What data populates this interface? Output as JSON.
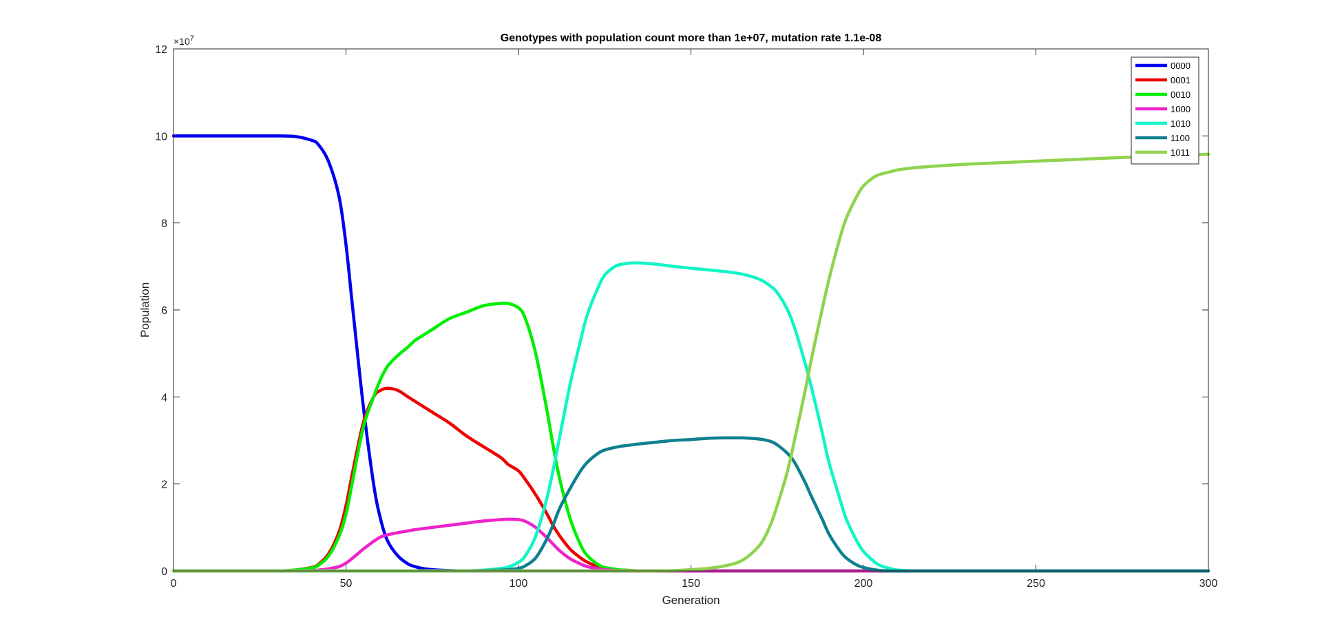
{
  "chart_data": {
    "type": "line",
    "title": "Genotypes with population count more than 1e+07, mutation rate 1.1e-08",
    "xlabel": "Generation",
    "ylabel": "Population",
    "y_exponent_label": "×10",
    "y_exponent_power": "7",
    "xlim": [
      0,
      300
    ],
    "ylim": [
      0,
      12
    ],
    "x_ticks": [
      0,
      50,
      100,
      150,
      200,
      250,
      300
    ],
    "y_ticks": [
      0,
      2,
      4,
      6,
      8,
      10,
      12
    ],
    "grid": false,
    "legend_position": "top-right",
    "x": [
      0,
      10,
      20,
      30,
      35,
      40,
      42,
      45,
      48,
      50,
      52,
      55,
      58,
      60,
      62,
      65,
      68,
      70,
      72,
      75,
      80,
      85,
      90,
      95,
      97,
      100,
      102,
      105,
      108,
      110,
      112,
      115,
      118,
      120,
      123,
      125,
      128,
      130,
      133,
      135,
      140,
      145,
      150,
      155,
      160,
      165,
      170,
      173,
      175,
      178,
      180,
      183,
      185,
      188,
      190,
      193,
      195,
      198,
      200,
      203,
      205,
      208,
      210,
      215,
      220,
      230,
      250,
      280,
      300
    ],
    "series": [
      {
        "name": "0000",
        "color": "#0000ee",
        "values": [
          10,
          10,
          10,
          10,
          9.99,
          9.9,
          9.8,
          9.4,
          8.6,
          7.5,
          6.0,
          3.8,
          2.0,
          1.2,
          0.7,
          0.35,
          0.16,
          0.1,
          0.06,
          0.03,
          0.01,
          0,
          0,
          0,
          0,
          0,
          0,
          0,
          0,
          0,
          0,
          0,
          0,
          0,
          0,
          0,
          0,
          0,
          0,
          0,
          0,
          0,
          0,
          0,
          0,
          0,
          0,
          0,
          0,
          0,
          0,
          0,
          0,
          0,
          0,
          0,
          0,
          0,
          0,
          0,
          0,
          0,
          0,
          0,
          0,
          0,
          0,
          0,
          0
        ]
      },
      {
        "name": "0001",
        "color": "#ee0000",
        "values": [
          0,
          0,
          0,
          0,
          0.02,
          0.08,
          0.15,
          0.4,
          0.9,
          1.5,
          2.3,
          3.4,
          4.0,
          4.15,
          4.2,
          4.15,
          4.0,
          3.9,
          3.8,
          3.65,
          3.4,
          3.1,
          2.85,
          2.6,
          2.45,
          2.3,
          2.1,
          1.75,
          1.35,
          1.05,
          0.8,
          0.5,
          0.3,
          0.2,
          0.1,
          0.06,
          0.03,
          0.02,
          0.01,
          0,
          0,
          0,
          0,
          0,
          0,
          0,
          0,
          0,
          0,
          0,
          0,
          0,
          0,
          0,
          0,
          0,
          0,
          0,
          0,
          0,
          0,
          0,
          0,
          0,
          0,
          0,
          0,
          0,
          0
        ]
      },
      {
        "name": "0010",
        "color": "#00ee00",
        "values": [
          0,
          0,
          0,
          0,
          0.02,
          0.07,
          0.13,
          0.35,
          0.8,
          1.3,
          2.1,
          3.3,
          4.0,
          4.4,
          4.7,
          4.95,
          5.15,
          5.3,
          5.4,
          5.55,
          5.8,
          5.95,
          6.1,
          6.15,
          6.15,
          6.05,
          5.8,
          5.0,
          3.8,
          2.9,
          2.1,
          1.2,
          0.6,
          0.35,
          0.15,
          0.08,
          0.04,
          0.02,
          0.01,
          0,
          0,
          0,
          0,
          0,
          0,
          0,
          0,
          0,
          0,
          0,
          0,
          0,
          0,
          0,
          0,
          0,
          0,
          0,
          0,
          0,
          0,
          0,
          0,
          0,
          0,
          0,
          0,
          0,
          0
        ]
      },
      {
        "name": "1000",
        "color": "#ee22cc",
        "values": [
          0,
          0,
          0,
          0,
          0,
          0.01,
          0.02,
          0.05,
          0.1,
          0.18,
          0.3,
          0.5,
          0.68,
          0.78,
          0.83,
          0.88,
          0.92,
          0.95,
          0.97,
          1.0,
          1.05,
          1.1,
          1.15,
          1.18,
          1.19,
          1.18,
          1.14,
          1.0,
          0.78,
          0.62,
          0.46,
          0.28,
          0.16,
          0.1,
          0.05,
          0.03,
          0.01,
          0,
          0,
          0,
          0,
          0,
          0,
          0,
          0,
          0,
          0,
          0,
          0,
          0,
          0,
          0,
          0,
          0,
          0,
          0,
          0,
          0,
          0,
          0,
          0,
          0,
          0,
          0,
          0,
          0,
          0,
          0,
          0
        ]
      },
      {
        "name": "1010",
        "color": "#11f5c8",
        "values": [
          0,
          0,
          0,
          0,
          0,
          0,
          0,
          0,
          0,
          0,
          0,
          0,
          0,
          0,
          0,
          0,
          0,
          0,
          0,
          0,
          0,
          0,
          0.02,
          0.06,
          0.09,
          0.2,
          0.35,
          0.8,
          1.6,
          2.3,
          3.1,
          4.3,
          5.3,
          5.9,
          6.5,
          6.8,
          7.0,
          7.05,
          7.08,
          7.08,
          7.05,
          7.0,
          6.96,
          6.92,
          6.88,
          6.82,
          6.7,
          6.55,
          6.4,
          6.0,
          5.6,
          4.8,
          4.2,
          3.2,
          2.5,
          1.7,
          1.2,
          0.7,
          0.45,
          0.22,
          0.12,
          0.05,
          0.02,
          0,
          0,
          0,
          0,
          0,
          0
        ]
      },
      {
        "name": "1100",
        "color": "#0e8090",
        "values": [
          0,
          0,
          0,
          0,
          0,
          0,
          0,
          0,
          0,
          0,
          0,
          0,
          0,
          0,
          0,
          0,
          0,
          0,
          0,
          0,
          0,
          0,
          0.01,
          0.02,
          0.03,
          0.06,
          0.12,
          0.3,
          0.7,
          1.05,
          1.45,
          1.9,
          2.3,
          2.5,
          2.7,
          2.78,
          2.84,
          2.87,
          2.9,
          2.92,
          2.96,
          3.0,
          3.02,
          3.05,
          3.06,
          3.06,
          3.03,
          2.98,
          2.9,
          2.7,
          2.5,
          2.05,
          1.7,
          1.2,
          0.85,
          0.48,
          0.3,
          0.14,
          0.08,
          0.03,
          0.01,
          0,
          0,
          0,
          0,
          0,
          0,
          0,
          0
        ]
      },
      {
        "name": "1011",
        "color": "#8fd34e",
        "values": [
          0,
          0,
          0,
          0,
          0,
          0,
          0,
          0,
          0,
          0,
          0,
          0,
          0,
          0,
          0,
          0,
          0,
          0,
          0,
          0,
          0,
          0,
          0,
          0,
          0,
          0,
          0,
          0,
          0,
          0,
          0,
          0,
          0,
          0,
          0,
          0,
          0,
          0,
          0,
          0,
          0,
          0.01,
          0.03,
          0.06,
          0.12,
          0.25,
          0.6,
          1.05,
          1.5,
          2.3,
          3.0,
          4.1,
          4.9,
          6.0,
          6.7,
          7.6,
          8.1,
          8.6,
          8.85,
          9.05,
          9.12,
          9.18,
          9.22,
          9.27,
          9.3,
          9.35,
          9.42,
          9.52,
          9.58
        ]
      }
    ]
  }
}
